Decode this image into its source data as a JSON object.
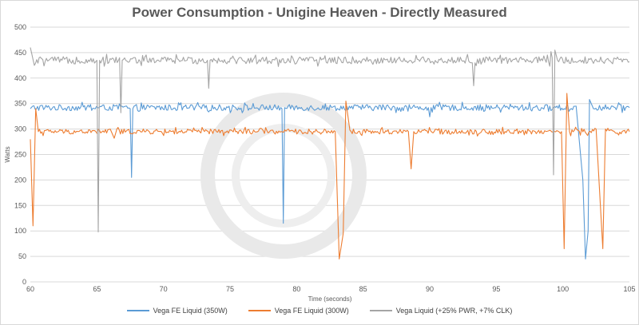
{
  "chart_data": {
    "type": "line",
    "title": "Power Consumption - Unigine Heaven - Directly Measured",
    "xlabel": "Time (seconds)",
    "ylabel": "Watts",
    "xlim": [
      60,
      105
    ],
    "ylim": [
      0,
      500
    ],
    "x_ticks": [
      60,
      65,
      70,
      75,
      80,
      85,
      90,
      95,
      100,
      105
    ],
    "y_ticks": [
      0,
      50,
      100,
      150,
      200,
      250,
      300,
      350,
      400,
      450,
      500
    ],
    "grid": true,
    "legend_position": "bottom",
    "series": [
      {
        "name": "Vega FE Liquid (350W)",
        "color": "#5B9BD5",
        "base": 342,
        "jitter": 6,
        "points": [
          [
            60.0,
            340
          ],
          [
            67.5,
            340
          ],
          [
            67.6,
            205
          ],
          [
            67.7,
            340
          ],
          [
            78.9,
            340
          ],
          [
            79.0,
            115
          ],
          [
            79.1,
            342
          ],
          [
            89.9,
            342
          ],
          [
            90.0,
            324
          ],
          [
            90.1,
            342
          ],
          [
            101.0,
            345
          ],
          [
            101.5,
            200
          ],
          [
            101.7,
            45
          ],
          [
            101.9,
            100
          ],
          [
            102.0,
            358
          ],
          [
            102.3,
            340
          ],
          [
            105.0,
            342
          ]
        ]
      },
      {
        "name": "Vega FE Liquid (300W)",
        "color": "#ED7D31",
        "base": 295,
        "jitter": 5,
        "points": [
          [
            60.0,
            280
          ],
          [
            60.2,
            110
          ],
          [
            60.4,
            340
          ],
          [
            60.6,
            295
          ],
          [
            66.0,
            300
          ],
          [
            66.3,
            282
          ],
          [
            66.5,
            300
          ],
          [
            82.9,
            295
          ],
          [
            83.2,
            45
          ],
          [
            83.5,
            95
          ],
          [
            83.7,
            355
          ],
          [
            84.0,
            298
          ],
          [
            88.4,
            295
          ],
          [
            88.6,
            222
          ],
          [
            88.8,
            295
          ],
          [
            99.9,
            295
          ],
          [
            100.1,
            65
          ],
          [
            100.3,
            370
          ],
          [
            100.5,
            295
          ],
          [
            102.5,
            300
          ],
          [
            103.0,
            65
          ],
          [
            103.2,
            300
          ],
          [
            105.0,
            295
          ]
        ]
      },
      {
        "name": "Vega Liquid (+25% PWR, +7% CLK)",
        "color": "#A5A5A5",
        "base": 435,
        "jitter": 7,
        "points": [
          [
            60.0,
            460
          ],
          [
            60.3,
            425
          ],
          [
            65.0,
            435
          ],
          [
            65.1,
            98
          ],
          [
            65.2,
            435
          ],
          [
            66.7,
            440
          ],
          [
            66.8,
            332
          ],
          [
            66.9,
            435
          ],
          [
            73.3,
            435
          ],
          [
            73.4,
            380
          ],
          [
            73.5,
            435
          ],
          [
            93.2,
            430
          ],
          [
            93.3,
            385
          ],
          [
            93.4,
            430
          ],
          [
            99.2,
            440
          ],
          [
            99.3,
            210
          ],
          [
            99.4,
            455
          ],
          [
            99.6,
            435
          ],
          [
            105.0,
            432
          ]
        ]
      }
    ]
  }
}
